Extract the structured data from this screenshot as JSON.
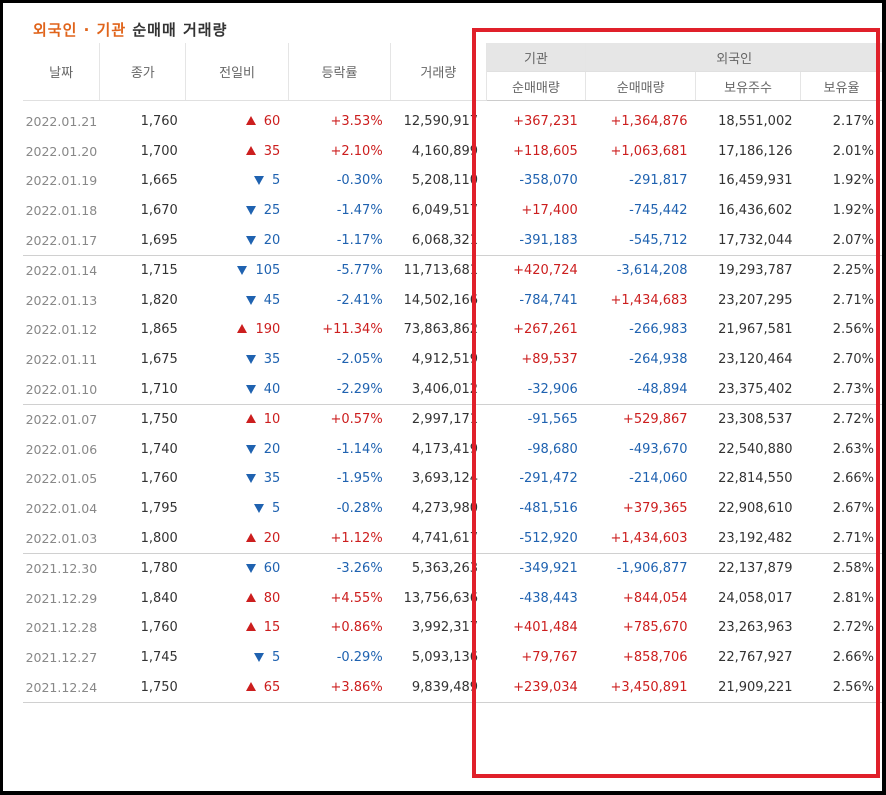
{
  "title": {
    "highlight": "외국인 · 기관",
    "rest": " 순매매 거래량"
  },
  "headers": {
    "date": "날짜",
    "close": "종가",
    "change": "전일비",
    "rate": "등락률",
    "volume": "거래량",
    "inst_group": "기관",
    "foreign_group": "외국인",
    "inst_net": "순매매량",
    "foreign_net": "순매매량",
    "foreign_shares": "보유주수",
    "foreign_ratio": "보유율"
  },
  "colors": {
    "up": "#cc1e1e",
    "down": "#1f62b0",
    "highlight_box": "#e0202a",
    "title_accent": "#e0641b"
  },
  "groups": [
    [
      {
        "date": "2022.01.21",
        "close": "1,760",
        "dir": "up",
        "change": "60",
        "rate": "+3.53%",
        "volume": "12,590,917",
        "inst": "+367,231",
        "foreign": "+1,364,876",
        "shares": "18,551,002",
        "ratio": "2.17%"
      },
      {
        "date": "2022.01.20",
        "close": "1,700",
        "dir": "up",
        "change": "35",
        "rate": "+2.10%",
        "volume": "4,160,899",
        "inst": "+118,605",
        "foreign": "+1,063,681",
        "shares": "17,186,126",
        "ratio": "2.01%"
      },
      {
        "date": "2022.01.19",
        "close": "1,665",
        "dir": "down",
        "change": "5",
        "rate": "-0.30%",
        "volume": "5,208,110",
        "inst": "-358,070",
        "foreign": "-291,817",
        "shares": "16,459,931",
        "ratio": "1.92%"
      },
      {
        "date": "2022.01.18",
        "close": "1,670",
        "dir": "down",
        "change": "25",
        "rate": "-1.47%",
        "volume": "6,049,517",
        "inst": "+17,400",
        "foreign": "-745,442",
        "shares": "16,436,602",
        "ratio": "1.92%"
      },
      {
        "date": "2022.01.17",
        "close": "1,695",
        "dir": "down",
        "change": "20",
        "rate": "-1.17%",
        "volume": "6,068,321",
        "inst": "-391,183",
        "foreign": "-545,712",
        "shares": "17,732,044",
        "ratio": "2.07%"
      }
    ],
    [
      {
        "date": "2022.01.14",
        "close": "1,715",
        "dir": "down",
        "change": "105",
        "rate": "-5.77%",
        "volume": "11,713,681",
        "inst": "+420,724",
        "foreign": "-3,614,208",
        "shares": "19,293,787",
        "ratio": "2.25%"
      },
      {
        "date": "2022.01.13",
        "close": "1,820",
        "dir": "down",
        "change": "45",
        "rate": "-2.41%",
        "volume": "14,502,166",
        "inst": "-784,741",
        "foreign": "+1,434,683",
        "shares": "23,207,295",
        "ratio": "2.71%"
      },
      {
        "date": "2022.01.12",
        "close": "1,865",
        "dir": "up",
        "change": "190",
        "rate": "+11.34%",
        "volume": "73,863,862",
        "inst": "+267,261",
        "foreign": "-266,983",
        "shares": "21,967,581",
        "ratio": "2.56%"
      },
      {
        "date": "2022.01.11",
        "close": "1,675",
        "dir": "down",
        "change": "35",
        "rate": "-2.05%",
        "volume": "4,912,519",
        "inst": "+89,537",
        "foreign": "-264,938",
        "shares": "23,120,464",
        "ratio": "2.70%"
      },
      {
        "date": "2022.01.10",
        "close": "1,710",
        "dir": "down",
        "change": "40",
        "rate": "-2.29%",
        "volume": "3,406,012",
        "inst": "-32,906",
        "foreign": "-48,894",
        "shares": "23,375,402",
        "ratio": "2.73%"
      }
    ],
    [
      {
        "date": "2022.01.07",
        "close": "1,750",
        "dir": "up",
        "change": "10",
        "rate": "+0.57%",
        "volume": "2,997,171",
        "inst": "-91,565",
        "foreign": "+529,867",
        "shares": "23,308,537",
        "ratio": "2.72%"
      },
      {
        "date": "2022.01.06",
        "close": "1,740",
        "dir": "down",
        "change": "20",
        "rate": "-1.14%",
        "volume": "4,173,419",
        "inst": "-98,680",
        "foreign": "-493,670",
        "shares": "22,540,880",
        "ratio": "2.63%"
      },
      {
        "date": "2022.01.05",
        "close": "1,760",
        "dir": "down",
        "change": "35",
        "rate": "-1.95%",
        "volume": "3,693,124",
        "inst": "-291,472",
        "foreign": "-214,060",
        "shares": "22,814,550",
        "ratio": "2.66%"
      },
      {
        "date": "2022.01.04",
        "close": "1,795",
        "dir": "down",
        "change": "5",
        "rate": "-0.28%",
        "volume": "4,273,980",
        "inst": "-481,516",
        "foreign": "+379,365",
        "shares": "22,908,610",
        "ratio": "2.67%"
      },
      {
        "date": "2022.01.03",
        "close": "1,800",
        "dir": "up",
        "change": "20",
        "rate": "+1.12%",
        "volume": "4,741,617",
        "inst": "-512,920",
        "foreign": "+1,434,603",
        "shares": "23,192,482",
        "ratio": "2.71%"
      }
    ],
    [
      {
        "date": "2021.12.30",
        "close": "1,780",
        "dir": "down",
        "change": "60",
        "rate": "-3.26%",
        "volume": "5,363,263",
        "inst": "-349,921",
        "foreign": "-1,906,877",
        "shares": "22,137,879",
        "ratio": "2.58%"
      },
      {
        "date": "2021.12.29",
        "close": "1,840",
        "dir": "up",
        "change": "80",
        "rate": "+4.55%",
        "volume": "13,756,636",
        "inst": "-438,443",
        "foreign": "+844,054",
        "shares": "24,058,017",
        "ratio": "2.81%"
      },
      {
        "date": "2021.12.28",
        "close": "1,760",
        "dir": "up",
        "change": "15",
        "rate": "+0.86%",
        "volume": "3,992,317",
        "inst": "+401,484",
        "foreign": "+785,670",
        "shares": "23,263,963",
        "ratio": "2.72%"
      },
      {
        "date": "2021.12.27",
        "close": "1,745",
        "dir": "down",
        "change": "5",
        "rate": "-0.29%",
        "volume": "5,093,136",
        "inst": "+79,767",
        "foreign": "+858,706",
        "shares": "22,767,927",
        "ratio": "2.66%"
      },
      {
        "date": "2021.12.24",
        "close": "1,750",
        "dir": "up",
        "change": "65",
        "rate": "+3.86%",
        "volume": "9,839,489",
        "inst": "+239,034",
        "foreign": "+3,450,891",
        "shares": "21,909,221",
        "ratio": "2.56%"
      }
    ]
  ]
}
